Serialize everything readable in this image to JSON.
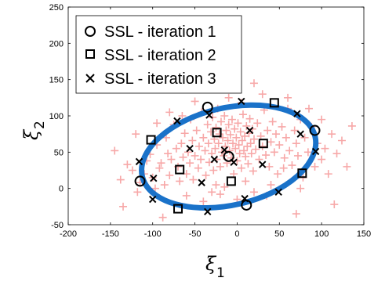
{
  "chart_data": {
    "type": "scatter",
    "xlim": [
      -200,
      150
    ],
    "ylim": [
      -50,
      250
    ],
    "x_ticks": [
      "-200",
      "-150",
      "-100",
      "-50",
      "0",
      "50",
      "100",
      "150"
    ],
    "y_ticks": [
      "-50",
      "0",
      "50",
      "100",
      "150",
      "200",
      "250"
    ],
    "xlabel_main": "ξ",
    "xlabel_sub": "1",
    "ylabel_main": "ξ",
    "ylabel_sub": "2",
    "grid": false,
    "legend_placement": "top-left",
    "ellipse": {
      "center": [
        -10,
        44
      ],
      "semi_axes": [
        105,
        67
      ],
      "rotation_deg": 13,
      "color": "#1a72c9"
    },
    "background_points": {
      "marker": "plus",
      "color": "#f7a8a8",
      "points": [
        [
          -145,
          52
        ],
        [
          -138,
          12
        ],
        [
          -130,
          33
        ],
        [
          -124,
          25
        ],
        [
          -118,
          -5
        ],
        [
          -115,
          8
        ],
        [
          -110,
          20
        ],
        [
          -107,
          38
        ],
        [
          -103,
          47
        ],
        [
          -100,
          15
        ],
        [
          -97,
          0
        ],
        [
          -95,
          60
        ],
        [
          -92,
          28
        ],
        [
          -90,
          35
        ],
        [
          -86,
          5
        ],
        [
          -84,
          70
        ],
        [
          -82,
          48
        ],
        [
          -80,
          18
        ],
        [
          -78,
          40
        ],
        [
          -75,
          88
        ],
        [
          -72,
          55
        ],
        [
          -70,
          30
        ],
        [
          -68,
          10
        ],
        [
          -66,
          62
        ],
        [
          -64,
          43
        ],
        [
          -62,
          76
        ],
        [
          -60,
          20
        ],
        [
          -58,
          50
        ],
        [
          -56,
          35
        ],
        [
          -55,
          95
        ],
        [
          -53,
          66
        ],
        [
          -52,
          12
        ],
        [
          -50,
          45
        ],
        [
          -48,
          80
        ],
        [
          -46,
          28
        ],
        [
          -45,
          58
        ],
        [
          -43,
          40
        ],
        [
          -42,
          105
        ],
        [
          -40,
          70
        ],
        [
          -38,
          52
        ],
        [
          -37,
          18
        ],
        [
          -35,
          88
        ],
        [
          -34,
          62
        ],
        [
          -33,
          36
        ],
        [
          -31,
          78
        ],
        [
          -30,
          48
        ],
        [
          -29,
          98
        ],
        [
          -28,
          25
        ],
        [
          -27,
          68
        ],
        [
          -26,
          55
        ],
        [
          -25,
          84
        ],
        [
          -24,
          40
        ],
        [
          -23,
          110
        ],
        [
          -22,
          62
        ],
        [
          -21,
          75
        ],
        [
          -20,
          30
        ],
        [
          -19,
          92
        ],
        [
          -18,
          50
        ],
        [
          -17,
          70
        ],
        [
          -16,
          45
        ],
        [
          -15,
          100
        ],
        [
          -14,
          58
        ],
        [
          -13,
          80
        ],
        [
          -12,
          35
        ],
        [
          -11,
          66
        ],
        [
          -10,
          88
        ],
        [
          -9,
          52
        ],
        [
          -8,
          74
        ],
        [
          -7,
          42
        ],
        [
          -6,
          95
        ],
        [
          -5,
          62
        ],
        [
          -4,
          20
        ],
        [
          -3,
          82
        ],
        [
          -2,
          55
        ],
        [
          -1,
          70
        ],
        [
          0,
          38
        ],
        [
          1,
          90
        ],
        [
          2,
          60
        ],
        [
          3,
          48
        ],
        [
          4,
          78
        ],
        [
          5,
          28
        ],
        [
          6,
          66
        ],
        [
          7,
          102
        ],
        [
          8,
          52
        ],
        [
          9,
          72
        ],
        [
          10,
          44
        ],
        [
          11,
          86
        ],
        [
          12,
          58
        ],
        [
          13,
          34
        ],
        [
          14,
          76
        ],
        [
          15,
          96
        ],
        [
          16,
          62
        ],
        [
          17,
          48
        ],
        [
          18,
          82
        ],
        [
          19,
          24
        ],
        [
          20,
          68
        ],
        [
          22,
          54
        ],
        [
          24,
          90
        ],
        [
          26,
          40
        ],
        [
          28,
          72
        ],
        [
          30,
          58
        ],
        [
          32,
          108
        ],
        [
          34,
          46
        ],
        [
          36,
          80
        ],
        [
          38,
          30
        ],
        [
          40,
          64
        ],
        [
          42,
          92
        ],
        [
          44,
          50
        ],
        [
          46,
          75
        ],
        [
          48,
          20
        ],
        [
          50,
          60
        ],
        [
          53,
          85
        ],
        [
          56,
          42
        ],
        [
          58,
          70
        ],
        [
          60,
          110
        ],
        [
          62,
          52
        ],
        [
          65,
          32
        ],
        [
          68,
          80
        ],
        [
          70,
          62
        ],
        [
          72,
          45
        ],
        [
          75,
          95
        ],
        [
          78,
          15
        ],
        [
          80,
          70
        ],
        [
          84,
          50
        ],
        [
          88,
          85
        ],
        [
          92,
          30
        ],
        [
          95,
          62
        ],
        [
          100,
          40
        ],
        [
          104,
          55
        ],
        [
          108,
          20
        ],
        [
          112,
          75
        ],
        [
          118,
          48
        ],
        [
          124,
          66
        ],
        [
          130,
          30
        ],
        [
          136,
          86
        ],
        [
          -60,
          -10
        ],
        [
          -40,
          -18
        ],
        [
          -20,
          -8
        ],
        [
          0,
          -15
        ],
        [
          20,
          -5
        ],
        [
          -50,
          120
        ],
        [
          -10,
          125
        ],
        [
          30,
          130
        ],
        [
          -5,
          150
        ],
        [
          20,
          145
        ],
        [
          60,
          125
        ],
        [
          -88,
          -40
        ],
        [
          -135,
          -25
        ],
        [
          -30,
          -5
        ],
        [
          10,
          10
        ],
        [
          -95,
          90
        ],
        [
          5,
          118
        ],
        [
          40,
          5
        ],
        [
          85,
          110
        ],
        [
          115,
          -22
        ],
        [
          70,
          -35
        ],
        [
          -15,
          2
        ],
        [
          55,
          28
        ],
        [
          -80,
          105
        ],
        [
          100,
          95
        ],
        [
          -120,
          75
        ],
        [
          -25,
          5
        ],
        [
          35,
          -10
        ],
        [
          -65,
          100
        ],
        [
          75,
          0
        ]
      ]
    },
    "series": [
      {
        "name": "SSL - iteration 1",
        "marker": "circle",
        "points": [
          [
            -35,
            112
          ],
          [
            92,
            80
          ],
          [
            -115,
            10
          ],
          [
            11,
            -23
          ],
          [
            -10,
            44
          ]
        ]
      },
      {
        "name": "SSL - iteration 2",
        "marker": "square",
        "points": [
          [
            -102,
            67
          ],
          [
            44,
            118
          ],
          [
            -68,
            26
          ],
          [
            -24,
            77
          ],
          [
            -7,
            10
          ],
          [
            31,
            62
          ],
          [
            -70,
            -28
          ],
          [
            77,
            21
          ]
        ]
      },
      {
        "name": "SSL - iteration 3",
        "marker": "x",
        "points": [
          [
            -71,
            93
          ],
          [
            -33,
            101
          ],
          [
            5,
            120
          ],
          [
            71,
            103
          ],
          [
            -116,
            37
          ],
          [
            -56,
            55
          ],
          [
            -15,
            53
          ],
          [
            15,
            80
          ],
          [
            -27,
            40
          ],
          [
            30,
            33
          ],
          [
            -4,
            36
          ],
          [
            -99,
            14
          ],
          [
            -42,
            8
          ],
          [
            9,
            -14
          ],
          [
            -100,
            -15
          ],
          [
            -35,
            -32
          ],
          [
            49,
            -5
          ],
          [
            93,
            51
          ],
          [
            75,
            75
          ]
        ]
      }
    ]
  }
}
